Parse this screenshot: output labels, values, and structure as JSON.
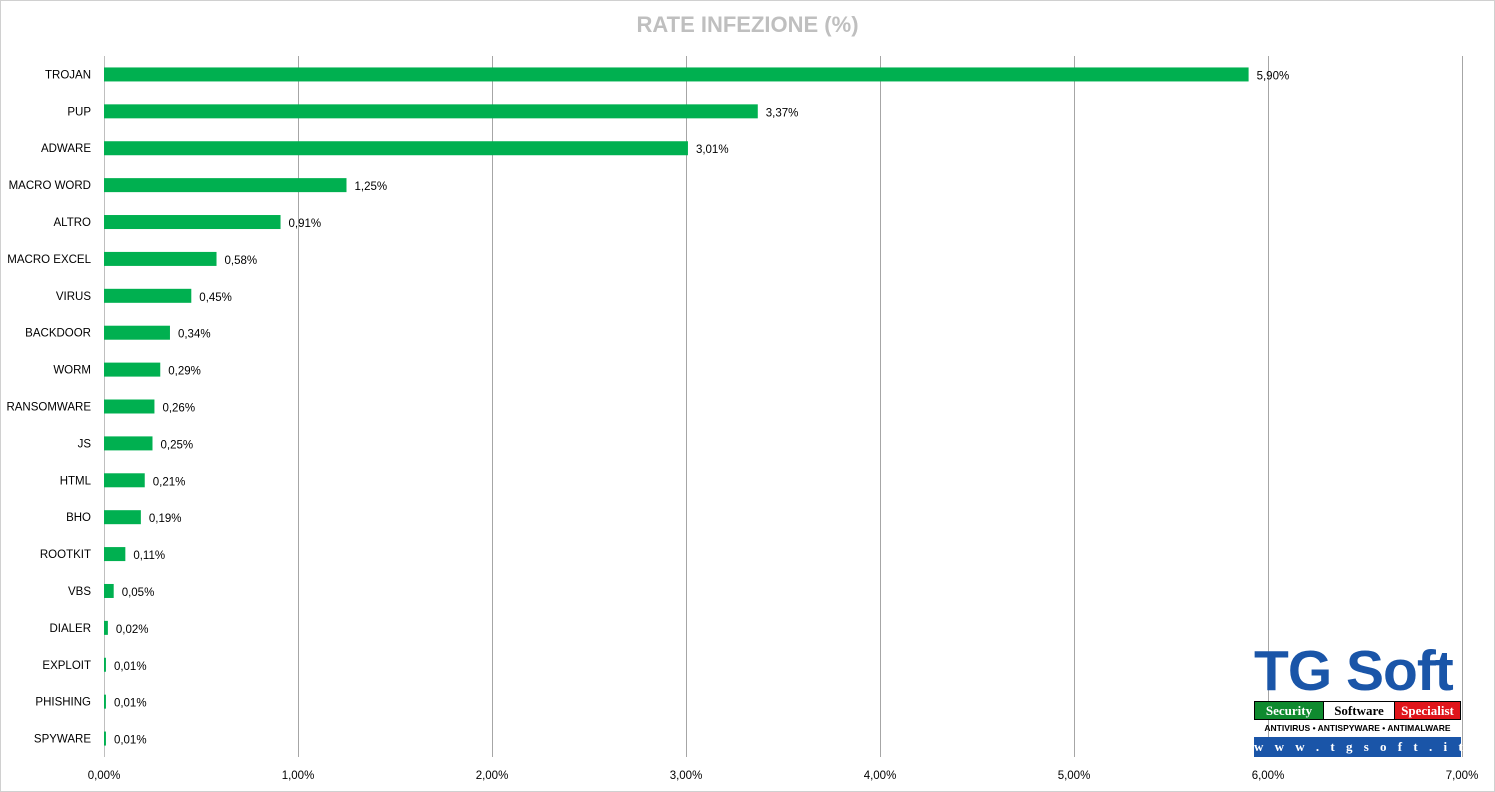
{
  "chart_data": {
    "type": "bar",
    "orientation": "horizontal",
    "title": "RATE INFEZIONE (%)",
    "categories": [
      "TROJAN",
      "PUP",
      "ADWARE",
      "MACRO WORD",
      "ALTRO",
      "MACRO EXCEL",
      "VIRUS",
      "BACKDOOR",
      "WORM",
      "RANSOMWARE",
      "JS",
      "HTML",
      "BHO",
      "ROOTKIT",
      "VBS",
      "DIALER",
      "EXPLOIT",
      "PHISHING",
      "SPYWARE"
    ],
    "values": [
      5.9,
      3.37,
      3.01,
      1.25,
      0.91,
      0.58,
      0.45,
      0.34,
      0.29,
      0.26,
      0.25,
      0.21,
      0.19,
      0.11,
      0.05,
      0.02,
      0.01,
      0.01,
      0.01
    ],
    "value_labels": [
      "5,90%",
      "3,37%",
      "3,01%",
      "1,25%",
      "0,91%",
      "0,58%",
      "0,45%",
      "0,34%",
      "0,29%",
      "0,26%",
      "0,25%",
      "0,21%",
      "0,19%",
      "0,11%",
      "0,05%",
      "0,02%",
      "0,01%",
      "0,01%",
      "0,01%"
    ],
    "xlim": [
      0,
      7
    ],
    "x_ticks": [
      0,
      1,
      2,
      3,
      4,
      5,
      6,
      7
    ],
    "x_tick_labels": [
      "0,00%",
      "1,00%",
      "2,00%",
      "3,00%",
      "4,00%",
      "5,00%",
      "6,00%",
      "7,00%"
    ],
    "grid": "vertical",
    "bar_color": "#00b050",
    "title_color": "#bfbfbf",
    "gridline_color": "#a6a6a6"
  },
  "logo": {
    "name": "TG Soft",
    "tagline_1": "Security",
    "tagline_2": "Software",
    "tagline_3": "Specialist",
    "subtitle": "ANTIVIRUS • ANTISPYWARE • ANTIMALWARE",
    "url": "w w w . t g s o f t . i t"
  }
}
